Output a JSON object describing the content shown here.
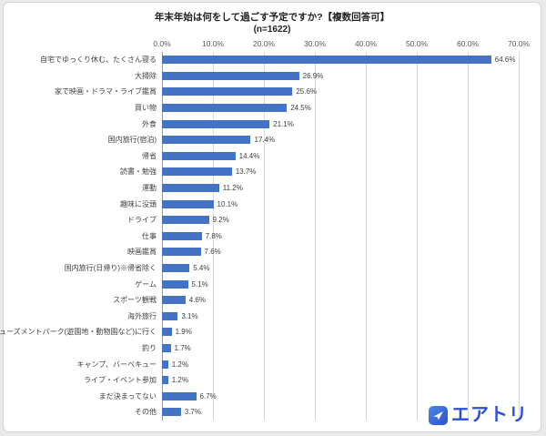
{
  "chart_data": {
    "type": "bar",
    "orientation": "horizontal",
    "title": "年末年始は何をして過ごす予定ですか?【複数回答可】",
    "subtitle": "(n=1622)",
    "xlabel": "",
    "ylabel": "",
    "xlim": [
      0,
      70
    ],
    "grid": true,
    "bar_color": "#4472c4",
    "x_ticks": [
      "0.0%",
      "10.0%",
      "20.0%",
      "30.0%",
      "40.0%",
      "50.0%",
      "60.0%",
      "70.0%"
    ],
    "categories": [
      "自宅でゆっくり休む、たくさん寝る",
      "大掃除",
      "家で映画・ドラマ・ライブ鑑賞",
      "買い物",
      "外食",
      "国内旅行(宿泊)",
      "帰省",
      "読書・勉強",
      "運動",
      "趣味に没頭",
      "ドライブ",
      "仕事",
      "映画鑑賞",
      "国内旅行(日帰り)※帰省除く",
      "ゲーム",
      "スポーツ観戦",
      "海外旅行",
      "アミューズメントパーク(遊園地・動物園など)に行く",
      "釣り",
      "キャンプ、バーベキュー",
      "ライブ・イベント参加",
      "まだ決まってない",
      "その他"
    ],
    "values": [
      64.6,
      26.9,
      25.6,
      24.5,
      21.1,
      17.4,
      14.4,
      13.7,
      11.2,
      10.1,
      9.2,
      7.8,
      7.6,
      5.4,
      5.1,
      4.6,
      3.1,
      1.9,
      1.7,
      1.2,
      1.2,
      6.7,
      3.7
    ],
    "value_labels": [
      "64.6%",
      "26.9%",
      "25.6%",
      "24.5%",
      "21.1%",
      "17.4%",
      "14.4%",
      "13.7%",
      "11.2%",
      "10.1%",
      "9.2%",
      "7.8%",
      "7.6%",
      "5.4%",
      "5.1%",
      "4.6%",
      "3.1%",
      "1.9%",
      "1.7%",
      "1.2%",
      "1.2%",
      "6.7%",
      "3.7%"
    ]
  },
  "logo": {
    "text": "エアトリ",
    "color": "#2b4fd3"
  }
}
